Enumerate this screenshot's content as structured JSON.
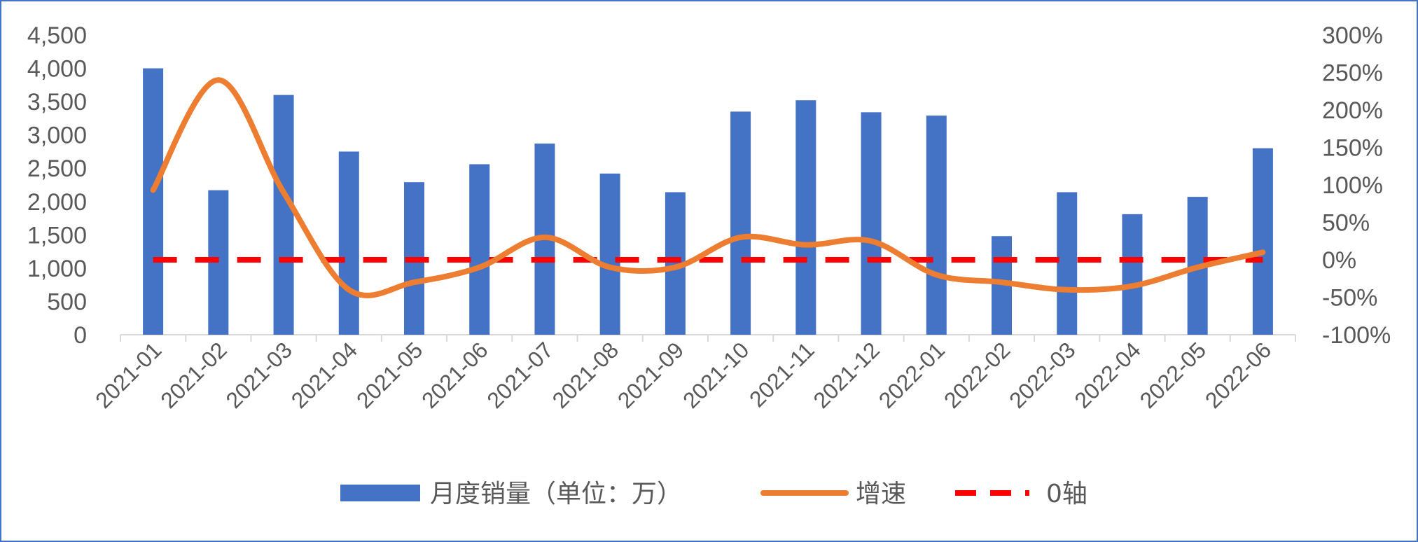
{
  "chart_data": {
    "type": "bar",
    "categories": [
      "2021-01",
      "2021-02",
      "2021-03",
      "2021-04",
      "2021-05",
      "2021-06",
      "2021-07",
      "2021-08",
      "2021-09",
      "2021-10",
      "2021-11",
      "2021-12",
      "2022-01",
      "2022-02",
      "2022-03",
      "2022-04",
      "2022-05",
      "2022-06"
    ],
    "series": [
      {
        "name": "月度销量（单位：万）",
        "type": "bar",
        "axis": "left",
        "color": "#4472c4",
        "values": [
          4000,
          2170,
          3600,
          2750,
          2290,
          2560,
          2870,
          2420,
          2140,
          3350,
          3520,
          3340,
          3290,
          1480,
          2140,
          1810,
          2070,
          2800
        ]
      },
      {
        "name": "增速",
        "type": "line",
        "smooth": true,
        "axis": "right",
        "color": "#ed7d31",
        "values": [
          93,
          240,
          90,
          -40,
          -30,
          -10,
          30,
          -10,
          -10,
          30,
          20,
          25,
          -20,
          -30,
          -40,
          -35,
          -10,
          10
        ]
      },
      {
        "name": "0轴",
        "type": "line",
        "dashed": true,
        "axis": "right",
        "color": "#ff0000",
        "values": [
          0,
          0,
          0,
          0,
          0,
          0,
          0,
          0,
          0,
          0,
          0,
          0,
          0,
          0,
          0,
          0,
          0,
          0
        ]
      }
    ],
    "y_left": {
      "ylim": [
        0,
        4500
      ],
      "ticks": [
        "0",
        "500",
        "1,000",
        "1,500",
        "2,000",
        "2,500",
        "3,000",
        "3,500",
        "4,000",
        "4,500"
      ]
    },
    "y_right": {
      "ylim": [
        -100,
        300
      ],
      "ticks": [
        "-100%",
        "-50%",
        "0%",
        "50%",
        "100%",
        "150%",
        "200%",
        "250%",
        "300%"
      ]
    },
    "legend_position": "bottom",
    "grid": false
  }
}
